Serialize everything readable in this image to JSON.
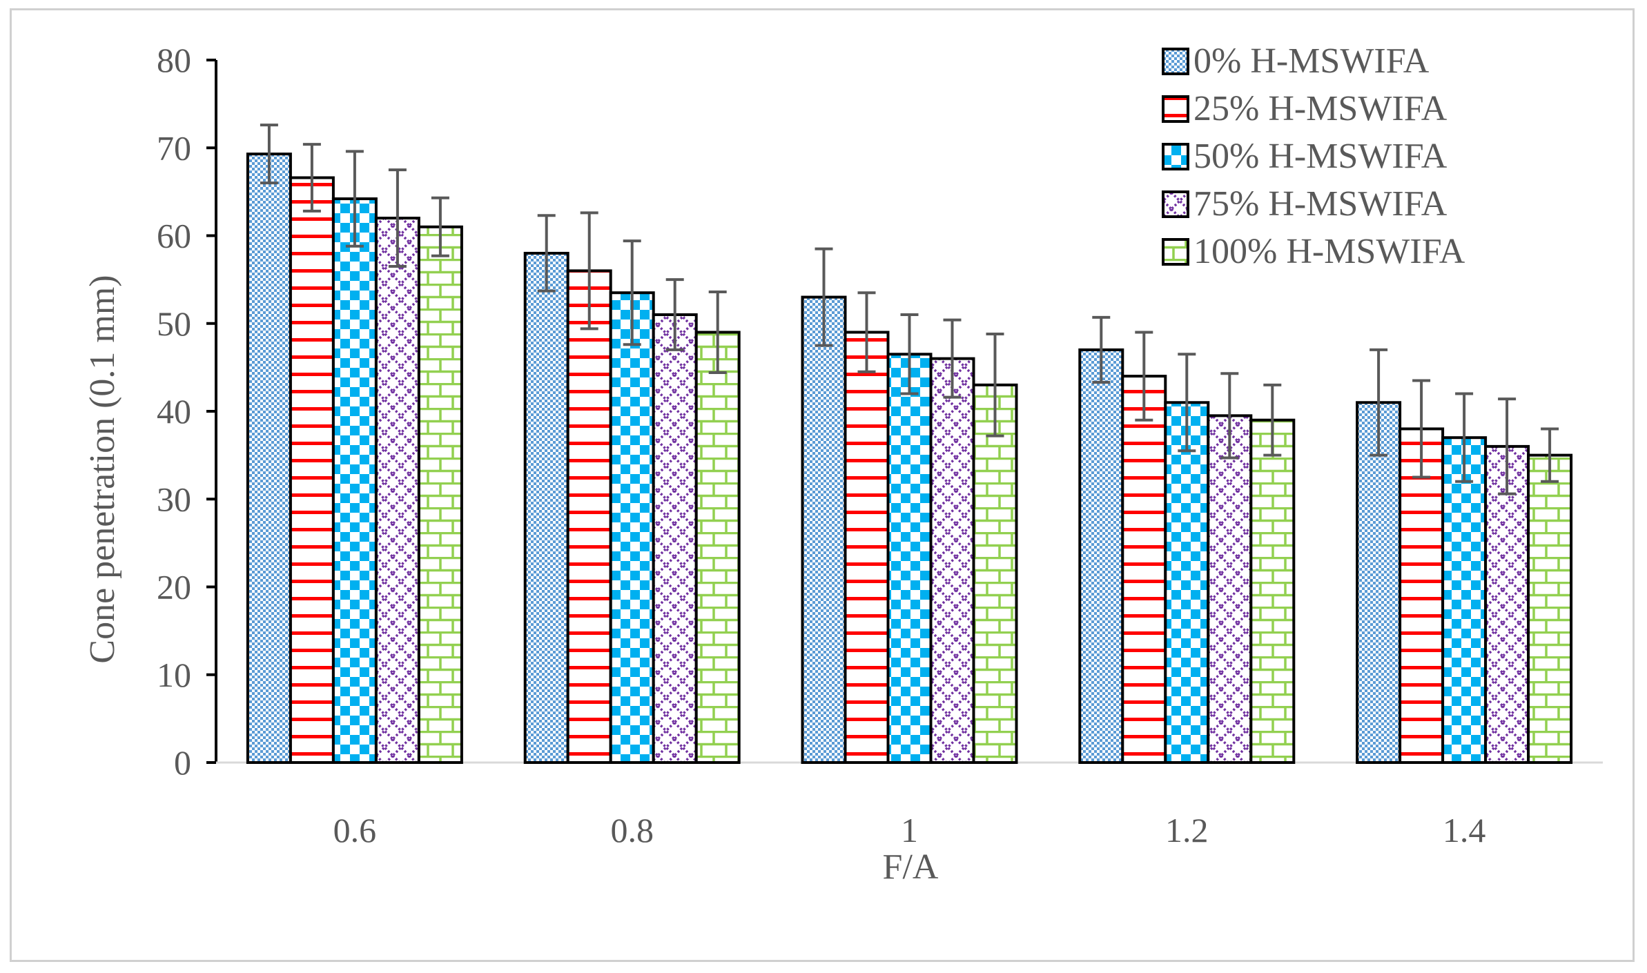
{
  "chart_data": {
    "type": "bar",
    "title": "",
    "xlabel": "F/A",
    "ylabel": "Cone penetration (0.1 mm)",
    "ylim": [
      0,
      80
    ],
    "yticks": [
      0,
      10,
      20,
      30,
      40,
      50,
      60,
      70,
      80
    ],
    "grid": false,
    "legend_position": "top-right",
    "categories": [
      "0.6",
      "0.8",
      "1",
      "1.2",
      "1.4"
    ],
    "series": [
      {
        "name": "0% H-MSWIFA",
        "values": [
          69.3,
          58,
          53,
          47,
          41
        ],
        "errors": [
          3.3,
          4.3,
          5.5,
          3.7,
          6.0
        ],
        "color": "#5b9bd5",
        "pattern": "dots"
      },
      {
        "name": "25% H-MSWIFA",
        "values": [
          66.6,
          56,
          49,
          44,
          38
        ],
        "errors": [
          3.8,
          6.6,
          4.5,
          5.0,
          5.5
        ],
        "color": "#ff0000",
        "pattern": "hlines"
      },
      {
        "name": "50% H-MSWIFA",
        "values": [
          64.2,
          53.5,
          46.5,
          41,
          37
        ],
        "errors": [
          5.4,
          5.9,
          4.5,
          5.5,
          5.0
        ],
        "color": "#00b0f0",
        "pattern": "checker"
      },
      {
        "name": "75% H-MSWIFA",
        "values": [
          62,
          51,
          46,
          39.5,
          36
        ],
        "errors": [
          5.5,
          4.0,
          4.4,
          4.8,
          5.4
        ],
        "color": "#7030a0",
        "pattern": "diamond"
      },
      {
        "name": "100% H-MSWIFA",
        "values": [
          61,
          49,
          43,
          39,
          35
        ],
        "errors": [
          3.3,
          4.6,
          5.8,
          4.0,
          3.0
        ],
        "color": "#92d050",
        "pattern": "brick"
      }
    ]
  }
}
